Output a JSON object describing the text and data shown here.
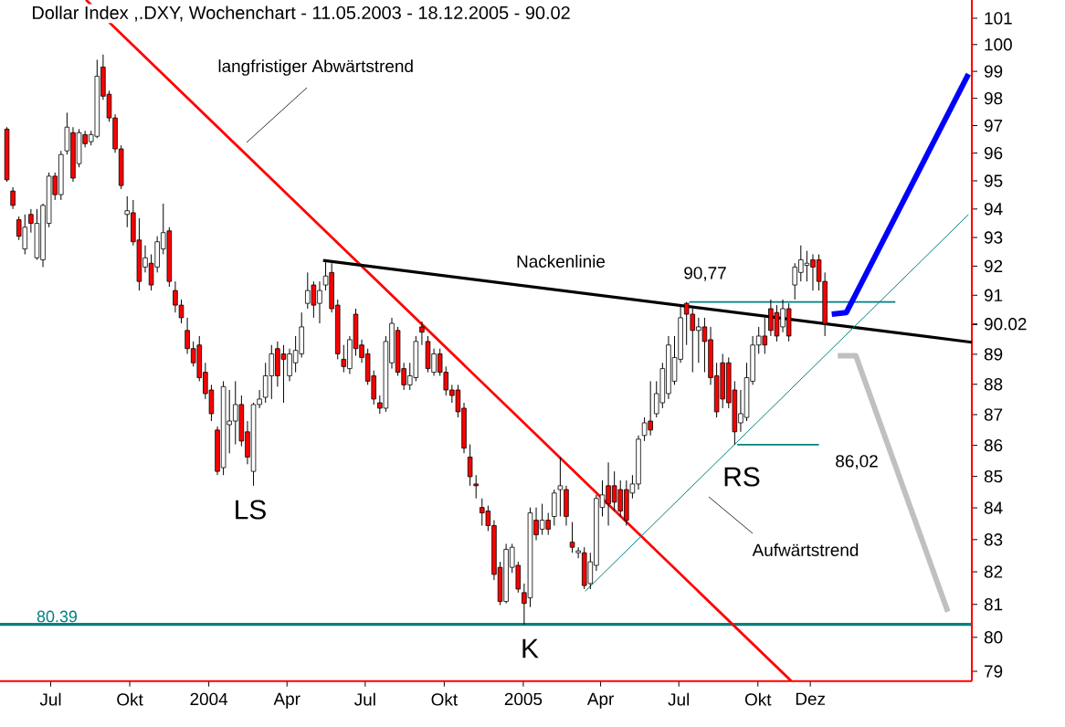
{
  "chart_data": {
    "type": "candlestick",
    "title": "Dollar Index ,.DXY, Wochenchart - 11.05.2003 - 18.12.2005 - 90.02",
    "log": "y",
    "xlim": [
      "2003-05-03",
      "2006-06-07"
    ],
    "ylim": [
      78.7,
      101.7
    ],
    "xticks": [
      {
        "value": "2003-07-01",
        "label": "Jul"
      },
      {
        "value": "2003-10-01",
        "label": "Okt"
      },
      {
        "value": "2004-01-01",
        "label": "2004"
      },
      {
        "value": "2004-04-01",
        "label": "Apr"
      },
      {
        "value": "2004-07-01",
        "label": "Jul"
      },
      {
        "value": "2004-10-01",
        "label": "Okt"
      },
      {
        "value": "2005-01-01",
        "label": "2005"
      },
      {
        "value": "2005-04-01",
        "label": "Apr"
      },
      {
        "value": "2005-07-01",
        "label": "Jul"
      },
      {
        "value": "2005-10-01",
        "label": "Okt"
      },
      {
        "value": "2005-12-01",
        "label": "Dez"
      }
    ],
    "yticks": [
      79,
      80,
      81,
      82,
      83,
      84,
      85,
      86,
      87,
      88,
      89,
      {
        "value": 90,
        "label": null
      },
      {
        "value": 90.02,
        "label": "90.02"
      },
      91,
      92,
      93,
      94,
      95,
      96,
      97,
      98,
      99,
      100,
      101
    ],
    "x": [
      "2003-05-11",
      "2003-05-18",
      "2003-05-25",
      "2003-06-01",
      "2003-06-08",
      "2003-06-15",
      "2003-06-22",
      "2003-06-29",
      "2003-07-06",
      "2003-07-13",
      "2003-07-20",
      "2003-07-27",
      "2003-08-03",
      "2003-08-10",
      "2003-08-17",
      "2003-08-24",
      "2003-08-31",
      "2003-09-07",
      "2003-09-14",
      "2003-09-21",
      "2003-09-28",
      "2003-10-05",
      "2003-10-12",
      "2003-10-19",
      "2003-10-26",
      "2003-11-02",
      "2003-11-09",
      "2003-11-16",
      "2003-11-23",
      "2003-11-30",
      "2003-12-07",
      "2003-12-14",
      "2003-12-21",
      "2003-12-28",
      "2004-01-04",
      "2004-01-11",
      "2004-01-18",
      "2004-01-25",
      "2004-02-01",
      "2004-02-08",
      "2004-02-15",
      "2004-02-22",
      "2004-02-29",
      "2004-03-07",
      "2004-03-14",
      "2004-03-21",
      "2004-03-28",
      "2004-04-04",
      "2004-04-11",
      "2004-04-18",
      "2004-04-25",
      "2004-05-02",
      "2004-05-09",
      "2004-05-16",
      "2004-05-23",
      "2004-05-30",
      "2004-06-06",
      "2004-06-13",
      "2004-06-20",
      "2004-06-27",
      "2004-07-04",
      "2004-07-11",
      "2004-07-18",
      "2004-07-25",
      "2004-08-01",
      "2004-08-08",
      "2004-08-15",
      "2004-08-22",
      "2004-08-29",
      "2004-09-05",
      "2004-09-12",
      "2004-09-19",
      "2004-09-26",
      "2004-10-03",
      "2004-10-10",
      "2004-10-17",
      "2004-10-24",
      "2004-10-31",
      "2004-11-07",
      "2004-11-14",
      "2004-11-21",
      "2004-11-28",
      "2004-12-05",
      "2004-12-12",
      "2004-12-19",
      "2004-12-26",
      "2005-01-02",
      "2005-01-09",
      "2005-01-16",
      "2005-01-23",
      "2005-01-30",
      "2005-02-06",
      "2005-02-13",
      "2005-02-20",
      "2005-02-27",
      "2005-03-06",
      "2005-03-13",
      "2005-03-20",
      "2005-03-27",
      "2005-04-03",
      "2005-04-10",
      "2005-04-17",
      "2005-04-24",
      "2005-05-01",
      "2005-05-08",
      "2005-05-15",
      "2005-05-22",
      "2005-05-29",
      "2005-06-05",
      "2005-06-12",
      "2005-06-19",
      "2005-06-26",
      "2005-07-03",
      "2005-07-10",
      "2005-07-17",
      "2005-07-24",
      "2005-07-31",
      "2005-08-07",
      "2005-08-14",
      "2005-08-21",
      "2005-08-28",
      "2005-09-04",
      "2005-09-11",
      "2005-09-18",
      "2005-09-25",
      "2005-10-02",
      "2005-10-09",
      "2005-10-16",
      "2005-10-23",
      "2005-10-30",
      "2005-11-06",
      "2005-11-13",
      "2005-11-20",
      "2005-11-27",
      "2005-12-04",
      "2005-12-11",
      "2005-12-18"
    ],
    "ohlc": [
      [
        96.87,
        96.94,
        94.97,
        95.04
      ],
      [
        94.64,
        94.77,
        94.0,
        94.13
      ],
      [
        93.62,
        93.74,
        92.91,
        93.04
      ],
      [
        92.6,
        93.81,
        92.41,
        93.36
      ],
      [
        93.81,
        94.0,
        93.17,
        93.49
      ],
      [
        92.29,
        94.0,
        92.22,
        93.49
      ],
      [
        92.22,
        94.19,
        91.97,
        94.13
      ],
      [
        93.49,
        95.3,
        93.36,
        95.17
      ],
      [
        95.17,
        95.3,
        94.32,
        94.51
      ],
      [
        94.51,
        96.08,
        94.32,
        95.95
      ],
      [
        96.08,
        97.47,
        95.95,
        96.94
      ],
      [
        96.74,
        96.94,
        94.97,
        95.1
      ],
      [
        95.62,
        96.87,
        95.49,
        96.74
      ],
      [
        96.67,
        96.81,
        96.21,
        96.34
      ],
      [
        96.41,
        96.81,
        96.28,
        96.67
      ],
      [
        96.61,
        99.43,
        96.54,
        98.82
      ],
      [
        99.16,
        99.63,
        97.94,
        98.08
      ],
      [
        98.15,
        98.28,
        97.14,
        97.28
      ],
      [
        97.28,
        97.41,
        96.01,
        96.15
      ],
      [
        96.15,
        96.28,
        94.71,
        94.84
      ],
      [
        93.81,
        94.45,
        93.36,
        93.94
      ],
      [
        93.87,
        94.32,
        92.72,
        92.85
      ],
      [
        92.91,
        93.68,
        91.16,
        91.47
      ],
      [
        91.97,
        92.72,
        91.78,
        92.29
      ],
      [
        92.1,
        92.41,
        91.16,
        91.35
      ],
      [
        91.97,
        93.04,
        91.78,
        92.85
      ],
      [
        92.6,
        94.19,
        92.41,
        93.17
      ],
      [
        93.23,
        93.36,
        91.29,
        91.47
      ],
      [
        91.16,
        91.47,
        90.41,
        90.66
      ],
      [
        90.66,
        90.85,
        90.04,
        90.23
      ],
      [
        89.8,
        90.23,
        89.01,
        89.19
      ],
      [
        89.19,
        89.43,
        88.59,
        88.71
      ],
      [
        89.31,
        89.61,
        88.1,
        88.22
      ],
      [
        88.4,
        88.71,
        87.51,
        87.69
      ],
      [
        87.81,
        87.98,
        86.79,
        87.03
      ],
      [
        86.5,
        86.61,
        85.04,
        85.16
      ],
      [
        85.28,
        88.1,
        85.04,
        87.92
      ],
      [
        86.67,
        87.81,
        85.74,
        86.79
      ],
      [
        86.79,
        88.1,
        86.03,
        87.33
      ],
      [
        87.33,
        87.63,
        85.97,
        86.14
      ],
      [
        86.44,
        86.79,
        85.39,
        85.62
      ],
      [
        85.16,
        87.39,
        84.7,
        87.33
      ],
      [
        87.33,
        87.81,
        87.21,
        87.51
      ],
      [
        87.57,
        88.71,
        87.39,
        88.28
      ],
      [
        88.28,
        89.31,
        87.51,
        89.01
      ],
      [
        89.19,
        89.43,
        87.92,
        88.28
      ],
      [
        89.01,
        89.31,
        87.39,
        88.83
      ],
      [
        88.28,
        89.19,
        88.1,
        89.01
      ],
      [
        88.71,
        89.61,
        88.4,
        89.13
      ],
      [
        89.01,
        90.41,
        88.89,
        89.92
      ],
      [
        90.72,
        91.78,
        90.54,
        91.16
      ],
      [
        91.35,
        91.47,
        90.23,
        90.66
      ],
      [
        90.72,
        91.47,
        90.04,
        91.16
      ],
      [
        91.35,
        92.22,
        91.16,
        91.66
      ],
      [
        91.78,
        92.1,
        90.41,
        90.54
      ],
      [
        90.66,
        90.85,
        88.83,
        89.01
      ],
      [
        88.83,
        89.31,
        88.4,
        88.59
      ],
      [
        88.52,
        89.61,
        88.34,
        89.49
      ],
      [
        90.35,
        90.54,
        88.95,
        89.19
      ],
      [
        89.31,
        89.49,
        88.71,
        88.89
      ],
      [
        89.01,
        89.19,
        87.98,
        88.1
      ],
      [
        88.28,
        88.46,
        87.33,
        87.51
      ],
      [
        87.39,
        87.63,
        87.03,
        87.21
      ],
      [
        87.21,
        89.61,
        87.09,
        89.43
      ],
      [
        88.71,
        90.23,
        88.52,
        90.04
      ],
      [
        89.8,
        89.92,
        88.28,
        88.4
      ],
      [
        88.52,
        88.71,
        87.81,
        87.98
      ],
      [
        87.98,
        88.71,
        87.81,
        88.28
      ],
      [
        88.22,
        89.61,
        88.1,
        89.43
      ],
      [
        89.92,
        90.1,
        89.31,
        89.74
      ],
      [
        89.43,
        89.61,
        88.4,
        88.52
      ],
      [
        88.4,
        89.19,
        88.28,
        89.01
      ],
      [
        89.01,
        89.19,
        88.28,
        88.4
      ],
      [
        88.4,
        88.59,
        87.63,
        87.81
      ],
      [
        87.81,
        87.98,
        87.39,
        87.63
      ],
      [
        87.81,
        87.98,
        86.91,
        87.09
      ],
      [
        87.21,
        87.39,
        85.74,
        85.91
      ],
      [
        85.62,
        86.03,
        84.7,
        84.99
      ],
      [
        84.76,
        85.04,
        84.3,
        84.7
      ],
      [
        84.01,
        84.3,
        83.44,
        83.84
      ],
      [
        83.9,
        84.07,
        83.27,
        83.44
      ],
      [
        83.44,
        83.61,
        81.75,
        81.92
      ],
      [
        82.14,
        82.31,
        80.98,
        81.09
      ],
      [
        81.09,
        82.87,
        81.03,
        82.7
      ],
      [
        82.14,
        82.87,
        81.97,
        82.76
      ],
      [
        82.2,
        82.31,
        81.36,
        81.47
      ],
      [
        81.36,
        81.64,
        80.39,
        81.03
      ],
      [
        81.2,
        84.01,
        80.92,
        83.84
      ],
      [
        83.61,
        84.01,
        82.98,
        83.15
      ],
      [
        83.33,
        84.13,
        83.15,
        83.61
      ],
      [
        83.61,
        83.84,
        83.15,
        83.33
      ],
      [
        83.73,
        84.58,
        83.44,
        84.47
      ],
      [
        84.58,
        85.62,
        83.73,
        84.7
      ],
      [
        84.58,
        84.7,
        83.44,
        83.73
      ],
      [
        82.92,
        83.55,
        82.59,
        82.76
      ],
      [
        82.59,
        82.76,
        82.42,
        82.65
      ],
      [
        82.59,
        82.76,
        81.47,
        81.58
      ],
      [
        81.64,
        82.59,
        81.47,
        82.31
      ],
      [
        82.2,
        84.41,
        82.03,
        84.3
      ],
      [
        84.01,
        84.87,
        83.73,
        84.41
      ],
      [
        84.7,
        85.45,
        83.44,
        84.13
      ],
      [
        84.7,
        85.16,
        83.9,
        84.18
      ],
      [
        84.58,
        84.87,
        83.73,
        83.9
      ],
      [
        84.58,
        84.87,
        83.44,
        83.61
      ],
      [
        84.47,
        85.04,
        84.3,
        84.76
      ],
      [
        84.76,
        86.32,
        84.58,
        86.2
      ],
      [
        86.32,
        86.91,
        86.14,
        86.73
      ],
      [
        86.79,
        88.1,
        86.32,
        86.5
      ],
      [
        87.03,
        88.1,
        86.91,
        87.69
      ],
      [
        87.39,
        88.71,
        87.21,
        88.52
      ],
      [
        87.69,
        89.61,
        87.51,
        89.31
      ],
      [
        88.1,
        89.61,
        87.98,
        88.89
      ],
      [
        88.83,
        90.66,
        88.71,
        90.23
      ],
      [
        90.72,
        90.77,
        89.31,
        90.35
      ],
      [
        90.35,
        90.54,
        88.4,
        89.8
      ],
      [
        89.8,
        90.23,
        88.71,
        89.92
      ],
      [
        89.92,
        90.23,
        88.4,
        89.43
      ],
      [
        89.49,
        89.92,
        87.98,
        88.22
      ],
      [
        88.28,
        88.71,
        86.91,
        87.09
      ],
      [
        88.71,
        89.01,
        87.21,
        87.51
      ],
      [
        88.71,
        88.89,
        87.21,
        87.39
      ],
      [
        87.81,
        88.1,
        86.02,
        86.44
      ],
      [
        86.73,
        87.81,
        86.44,
        87.03
      ],
      [
        86.91,
        88.71,
        86.79,
        88.22
      ],
      [
        88.1,
        89.61,
        87.98,
        89.31
      ],
      [
        89.31,
        89.92,
        89.01,
        89.61
      ],
      [
        89.61,
        90.23,
        89.01,
        89.31
      ],
      [
        90.54,
        90.85,
        89.61,
        89.8
      ],
      [
        90.41,
        90.66,
        89.43,
        89.61
      ],
      [
        89.92,
        90.85,
        89.74,
        90.54
      ],
      [
        90.54,
        90.72,
        89.43,
        89.61
      ],
      [
        91.35,
        92.1,
        90.85,
        91.97
      ],
      [
        91.78,
        92.72,
        91.47,
        92.22
      ],
      [
        92.03,
        92.53,
        91.47,
        92.1
      ],
      [
        92.22,
        92.41,
        91.16,
        91.97
      ],
      [
        92.22,
        92.41,
        91.16,
        91.47
      ],
      [
        91.47,
        91.78,
        89.61,
        90.02
      ]
    ],
    "series": [
      {
        "type": "line",
        "color": "#ff0000",
        "x": [
          "2003-08-11",
          "2005-11-09"
        ],
        "values": [
          101.7,
          78.7
        ]
      },
      {
        "type": "line",
        "color": "#000000",
        "x": [
          "2004-05-13",
          "2006-06-07"
        ],
        "values": [
          92.2,
          89.4
        ]
      },
      {
        "type": "line",
        "color": "#008080",
        "x": [
          "2005-03-14",
          "2006-06-03"
        ],
        "values": [
          81.4,
          93.8
        ]
      },
      {
        "type": "line",
        "color": "#008080",
        "x": [
          "2005-07-13",
          "2006-03-10"
        ],
        "values": [
          90.77,
          90.77
        ]
      },
      {
        "type": "line",
        "color": "#008080",
        "x": [
          "2005-09-07",
          "2005-12-11"
        ],
        "values": [
          86.02,
          86.02
        ]
      },
      {
        "type": "line",
        "color": "#0000ff",
        "x": [
          "2005-12-26",
          "2006-01-12",
          "2006-06-03"
        ],
        "values": [
          90.35,
          90.41,
          98.9
        ]
      },
      {
        "type": "line",
        "color": "#c0c0c0",
        "x": [
          "2006-01-02",
          "2006-01-23",
          "2006-05-10"
        ],
        "values": [
          88.95,
          88.95,
          80.78
        ]
      }
    ],
    "ref_lines": [
      {
        "axis": "y",
        "value": 80.39,
        "label": "80.39",
        "color": "#008080"
      }
    ],
    "annotations": [
      "langfristiger Abwärtstrend",
      "Nackenlinie",
      "90,77",
      "86,02",
      "LS",
      "RS",
      "K",
      "Aufwärtstrend"
    ]
  }
}
